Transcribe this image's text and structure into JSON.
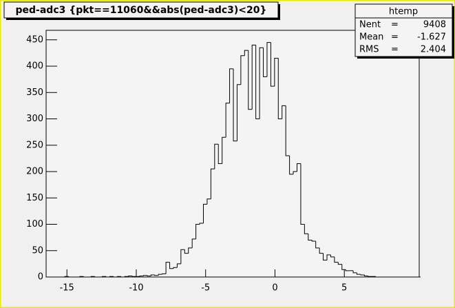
{
  "chart_data": {
    "type": "histogram",
    "title": "ped-adc3 {pkt==11060&&abs(ped-adc3)<20}",
    "stats": {
      "name": "htemp",
      "entries": [
        {
          "label": "Nent",
          "value": 9408
        },
        {
          "label": "Mean",
          "value": -1.627
        },
        {
          "label": "RMS",
          "value": 2.404
        }
      ]
    },
    "bins": [
      -16.5,
      -16.23,
      -15.96,
      -15.69,
      -15.42,
      -15.15,
      -14.88,
      -14.61,
      -14.34,
      -14.07,
      -13.8,
      -13.53,
      -13.26,
      -12.99,
      -12.72,
      -12.45,
      -12.18,
      -11.91,
      -11.64,
      -11.37,
      -11.1,
      -10.83,
      -10.56,
      -10.29,
      -10.02,
      -9.75,
      -9.48,
      -9.21,
      -8.94,
      -8.67,
      -8.4,
      -8.13,
      -7.86,
      -7.59,
      -7.32,
      -7.05,
      -6.78,
      -6.51,
      -6.24,
      -5.97,
      -5.7,
      -5.43,
      -5.16,
      -4.89,
      -4.62,
      -4.35,
      -4.08,
      -3.81,
      -3.54,
      -3.27,
      -3.0,
      -2.73,
      -2.46,
      -2.19,
      -1.92,
      -1.65,
      -1.38,
      -1.11,
      -0.84,
      -0.57,
      -0.3,
      -0.03,
      0.24,
      0.51,
      0.78,
      1.05,
      1.32,
      1.59,
      1.86,
      2.13,
      2.4,
      2.67,
      2.94,
      3.21,
      3.48,
      3.75,
      4.02,
      4.29,
      4.56,
      4.83,
      5.1,
      5.37,
      5.64,
      5.91,
      6.18,
      6.45,
      6.72,
      6.99,
      7.26,
      7.53,
      7.8,
      8.07,
      8.34,
      8.61,
      8.88,
      9.15,
      9.42,
      9.69,
      9.96,
      10.23,
      10.5
    ],
    "values": [
      0,
      0,
      0,
      0,
      0,
      1,
      0,
      0,
      0,
      1,
      0,
      0,
      1,
      0,
      0,
      1,
      0,
      1,
      0,
      1,
      0,
      1,
      2,
      1,
      1,
      2,
      3,
      2,
      4,
      3,
      5,
      6,
      28,
      16,
      18,
      25,
      52,
      45,
      55,
      72,
      100,
      102,
      138,
      148,
      205,
      252,
      215,
      265,
      330,
      395,
      258,
      365,
      420,
      430,
      318,
      440,
      300,
      435,
      380,
      445,
      362,
      415,
      300,
      325,
      230,
      195,
      200,
      215,
      100,
      82,
      70,
      68,
      55,
      45,
      32,
      42,
      38,
      28,
      24,
      14,
      12,
      12,
      8,
      5,
      4,
      2,
      1,
      1,
      0,
      0,
      0,
      0,
      0,
      0,
      0,
      0,
      0,
      0,
      0,
      0
    ],
    "color": "#000000",
    "xlim": [
      -16.5,
      10.4
    ],
    "xticks": [
      -15,
      -10,
      -5,
      0,
      5
    ],
    "ylim": [
      0,
      468
    ],
    "yticks": [
      0,
      50,
      100,
      150,
      200,
      250,
      300,
      350,
      400,
      450
    ]
  }
}
